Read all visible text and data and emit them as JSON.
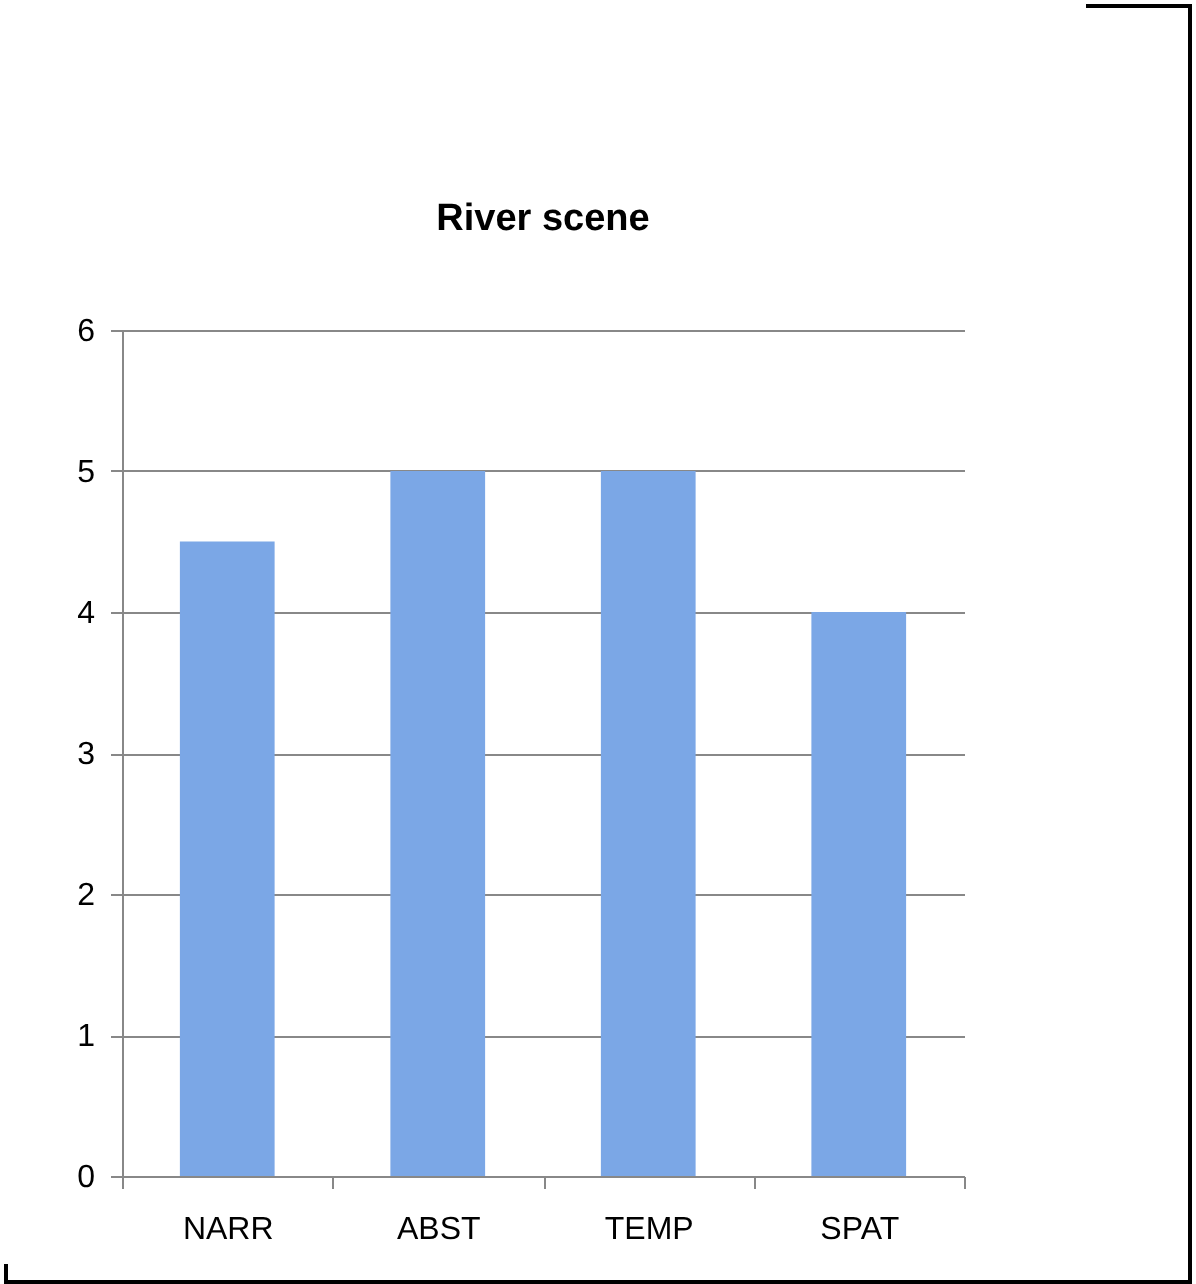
{
  "chart_data": {
    "type": "bar",
    "title": "River scene",
    "categories": [
      "NARR",
      "ABST",
      "TEMP",
      "SPAT"
    ],
    "values": [
      4.5,
      5,
      5,
      4
    ],
    "color": "#7ba7e6",
    "ylim": [
      0,
      6
    ],
    "yticks": [
      0,
      1,
      2,
      3,
      4,
      5,
      6
    ],
    "grid": "y"
  }
}
